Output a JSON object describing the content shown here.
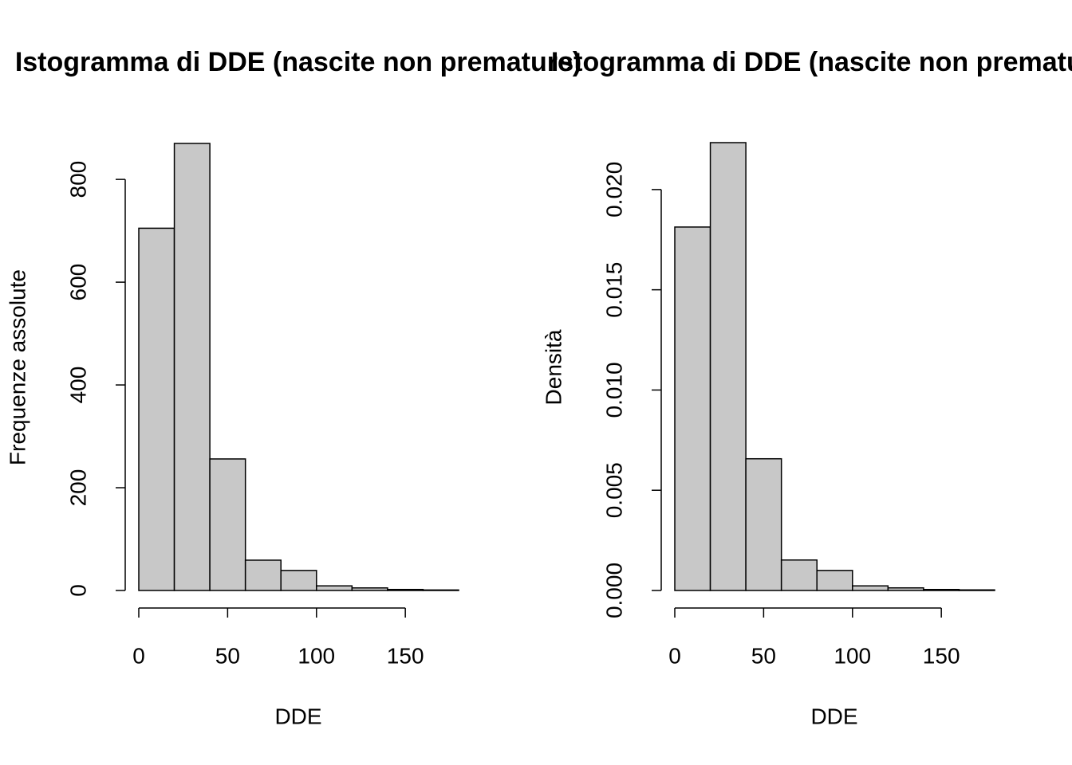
{
  "chart_data": [
    {
      "type": "histogram",
      "title": "Istogramma di DDE (nascite non premature)",
      "xlabel": "DDE",
      "ylabel": "Frequenze assolute",
      "bins": [
        0,
        20,
        40,
        60,
        80,
        100,
        120,
        140,
        160,
        180
      ],
      "values": [
        705,
        870,
        256,
        59,
        39,
        9,
        5,
        2,
        1
      ],
      "color": "#c8c8c8",
      "xlim": [
        0,
        180
      ],
      "xticks": [
        0,
        50,
        100,
        150
      ],
      "ylim": [
        0,
        870
      ],
      "yticks": [
        0,
        200,
        400,
        600,
        800
      ]
    },
    {
      "type": "histogram",
      "title": "Istogramma di DDE (nascite non premature)",
      "xlabel": "DDE",
      "ylabel": "Densità",
      "bins": [
        0,
        20,
        40,
        60,
        80,
        100,
        120,
        140,
        160,
        180
      ],
      "values": [
        0.01813,
        0.02234,
        0.00657,
        0.00152,
        0.001,
        0.00023,
        0.00013,
        5e-05,
        3e-05
      ],
      "color": "#c8c8c8",
      "xlim": [
        0,
        180
      ],
      "xticks": [
        0,
        50,
        100,
        150
      ],
      "ylim": [
        0,
        0.0223
      ],
      "yticks": [
        {
          "value": 0,
          "label": "0.000"
        },
        {
          "value": 0.005,
          "label": "0.005"
        },
        {
          "value": 0.01,
          "label": "0.010"
        },
        {
          "value": 0.015,
          "label": "0.015"
        },
        {
          "value": 0.02,
          "label": "0.020"
        }
      ]
    }
  ]
}
